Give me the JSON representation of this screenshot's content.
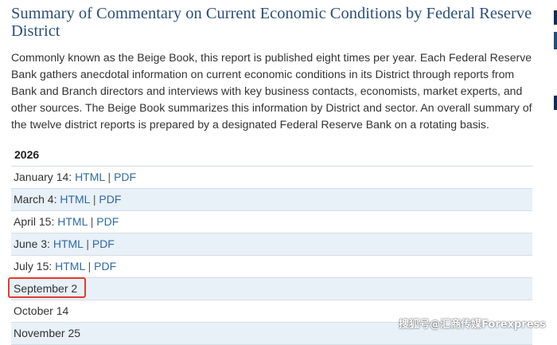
{
  "page": {
    "title": "Summary of Commentary on Current Economic Conditions by Federal Reserve District",
    "intro": "Commonly known as the Beige Book, this report is published eight times per year. Each Federal Reserve Bank gathers anecdotal information on current economic conditions in its District through reports from Bank and Branch directors and interviews with key business contacts, economists, market experts, and other sources. The Beige Book summarizes this information by District and sector. An overall summary of the twelve district reports is prepared by a designated Federal Reserve Bank on a rotating basis."
  },
  "schedule": {
    "year": "2026",
    "separator": "|",
    "rows": [
      {
        "date": "January 14:",
        "html": "HTML",
        "pdf": "PDF"
      },
      {
        "date": "March 4:",
        "html": "HTML",
        "pdf": "PDF"
      },
      {
        "date": "April 15:",
        "html": "HTML",
        "pdf": "PDF"
      },
      {
        "date": "June 3:",
        "html": "HTML",
        "pdf": "PDF"
      },
      {
        "date": "July 15:",
        "html": "HTML",
        "pdf": "PDF"
      },
      {
        "date": "September 2"
      },
      {
        "date": "October 14"
      },
      {
        "date": "November 25"
      }
    ]
  },
  "colors": {
    "title": "#2b4f7a",
    "link": "#2f6aa3",
    "alt_row": "#e8f0f8",
    "highlight": "#e23a2f"
  },
  "watermark": "搜狐号@汇商传媒Forexpress"
}
